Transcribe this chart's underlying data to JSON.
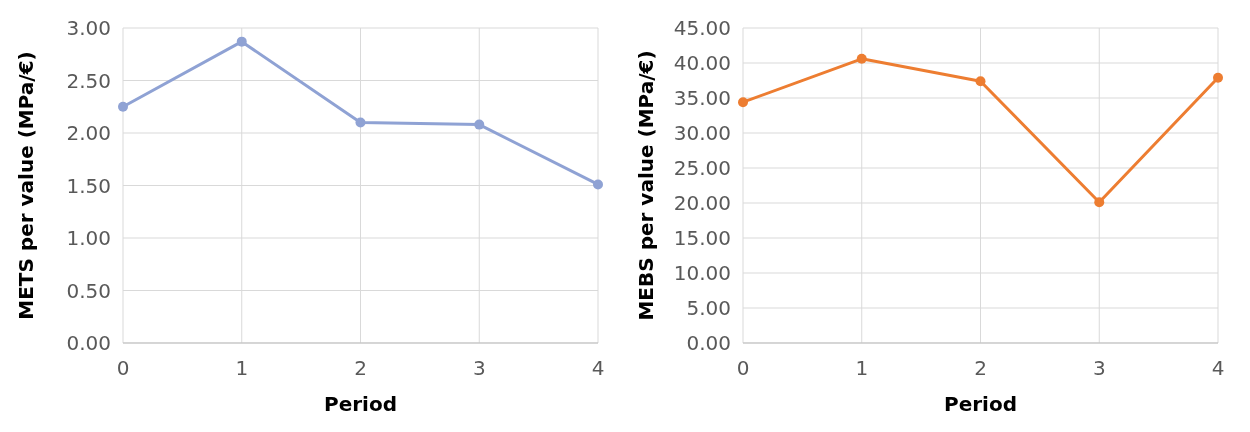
{
  "chart_data": [
    {
      "type": "line",
      "xlabel": "Period",
      "ylabel": "METS per value (MPa/€)",
      "x": [
        0,
        1,
        2,
        3,
        4
      ],
      "xlim": [
        0,
        4
      ],
      "xticks": [
        0,
        1,
        2,
        3,
        4
      ],
      "ylim": [
        0,
        3
      ],
      "yticks": [
        {
          "value": 0,
          "label": "0.00"
        },
        {
          "value": 0.5,
          "label": "0.50"
        },
        {
          "value": 1,
          "label": "1.00"
        },
        {
          "value": 1.5,
          "label": "1.50"
        },
        {
          "value": 2,
          "label": "2.00"
        },
        {
          "value": 2.5,
          "label": "2.50"
        },
        {
          "value": 3,
          "label": "3.00"
        }
      ],
      "grid": true,
      "marker": "circle",
      "series": [
        {
          "color": "#8fa2d4",
          "values": [
            2.25,
            2.87,
            2.1,
            2.08,
            1.51
          ]
        }
      ]
    },
    {
      "type": "line",
      "xlabel": "Period",
      "ylabel": "MEBS per value (MPa/€)",
      "x": [
        0,
        1,
        2,
        3,
        4
      ],
      "xlim": [
        0,
        4
      ],
      "xticks": [
        0,
        1,
        2,
        3,
        4
      ],
      "ylim": [
        0,
        45
      ],
      "yticks": [
        {
          "value": 0,
          "label": "0.00"
        },
        {
          "value": 5,
          "label": "5.00"
        },
        {
          "value": 10,
          "label": "10.00"
        },
        {
          "value": 15,
          "label": "15.00"
        },
        {
          "value": 20,
          "label": "20.00"
        },
        {
          "value": 25,
          "label": "25.00"
        },
        {
          "value": 30,
          "label": "30.00"
        },
        {
          "value": 35,
          "label": "35.00"
        },
        {
          "value": 40,
          "label": "40.00"
        },
        {
          "value": 45,
          "label": "45.00"
        }
      ],
      "grid": true,
      "marker": "circle",
      "series": [
        {
          "color": "#ed7d31",
          "values": [
            34.4,
            40.6,
            37.4,
            20.1,
            37.9
          ]
        }
      ]
    }
  ]
}
